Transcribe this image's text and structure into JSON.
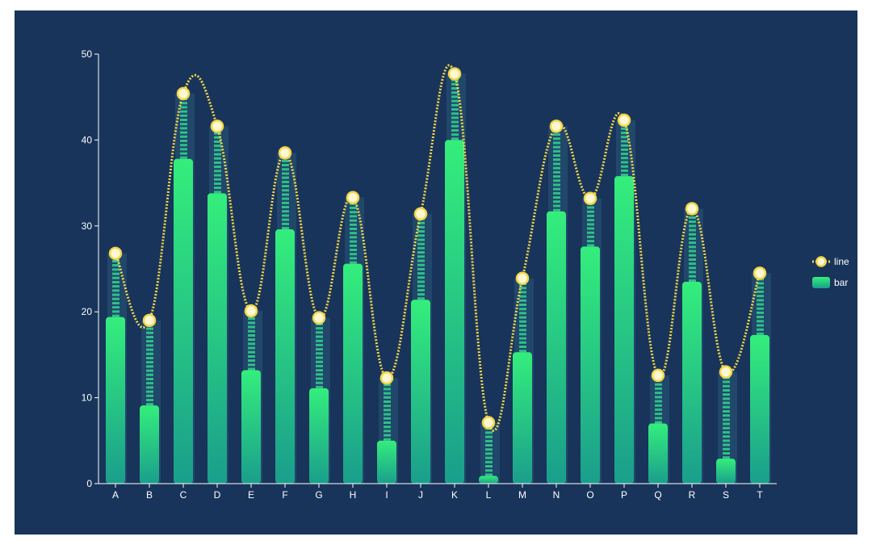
{
  "chart_data": {
    "type": "bar",
    "title": "",
    "xlabel": "",
    "ylabel": "",
    "ylim": [
      0,
      50
    ],
    "yticks": [
      0,
      10,
      20,
      30,
      40,
      50
    ],
    "categories": [
      "A",
      "B",
      "C",
      "D",
      "E",
      "F",
      "G",
      "H",
      "I",
      "J",
      "K",
      "L",
      "M",
      "N",
      "O",
      "P",
      "Q",
      "R",
      "S",
      "T"
    ],
    "series": [
      {
        "name": "line",
        "type": "line",
        "smooth": true,
        "values": [
          26.8,
          19.0,
          45.4,
          41.6,
          20.1,
          38.5,
          19.3,
          33.3,
          12.3,
          31.4,
          47.7,
          7.1,
          23.9,
          41.6,
          33.2,
          42.3,
          12.6,
          32.0,
          13.0,
          24.5
        ]
      },
      {
        "name": "bar",
        "type": "bar",
        "values": [
          19.4,
          9.1,
          37.8,
          33.8,
          13.2,
          29.6,
          11.1,
          25.6,
          5.0,
          21.4,
          40.0,
          0.9,
          15.3,
          31.7,
          27.6,
          35.8,
          7.0,
          23.5,
          2.9,
          17.3
        ]
      }
    ],
    "legend": {
      "position": "right",
      "entries": [
        "line",
        "bar"
      ]
    },
    "grid": false,
    "colors": {
      "background": "#18345a",
      "bar_top": "#34ee7c",
      "bar_bottom": "#1a9e8c",
      "stripe": "#2fc08a",
      "shadow_bar": "#21476a",
      "line": "#f1d64a",
      "marker_fill": "#fff7d2",
      "marker_stroke": "#f1d64a",
      "axis": "#ffffff"
    }
  }
}
